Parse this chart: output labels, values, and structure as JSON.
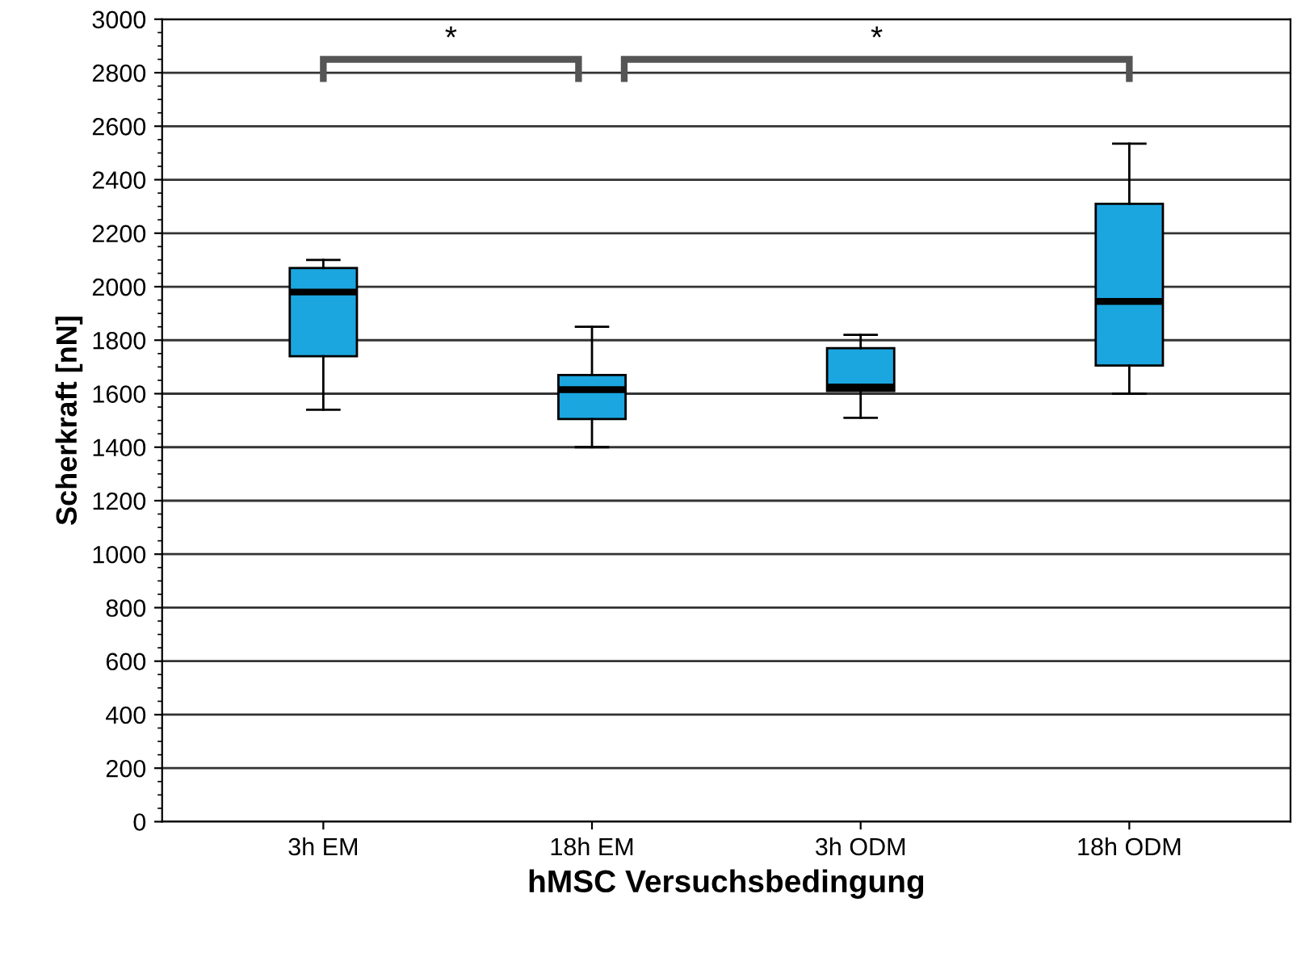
{
  "chart_data": {
    "type": "box",
    "xlabel": "hMSC Versuchsbedingung",
    "ylabel": "Scherkraft [nN]",
    "categories": [
      "3h EM",
      "18h EM",
      "3h ODM",
      "18h ODM"
    ],
    "boxes": [
      {
        "low": 1540,
        "q1": 1740,
        "median": 1980,
        "q3": 2070,
        "high": 2100
      },
      {
        "low": 1400,
        "q1": 1505,
        "median": 1615,
        "q3": 1670,
        "high": 1850
      },
      {
        "low": 1510,
        "q1": 1610,
        "median": 1625,
        "q3": 1770,
        "high": 1820
      },
      {
        "low": 1600,
        "q1": 1705,
        "median": 1945,
        "q3": 2310,
        "high": 2535
      }
    ],
    "color": "#1ba6e0",
    "ylim": [
      0,
      3000
    ],
    "yticks": [
      0,
      200,
      400,
      600,
      800,
      1000,
      1200,
      1400,
      1600,
      1800,
      2000,
      2200,
      2400,
      2600,
      2800,
      3000
    ],
    "grid": "y",
    "annotations": [
      "*",
      "*"
    ]
  }
}
